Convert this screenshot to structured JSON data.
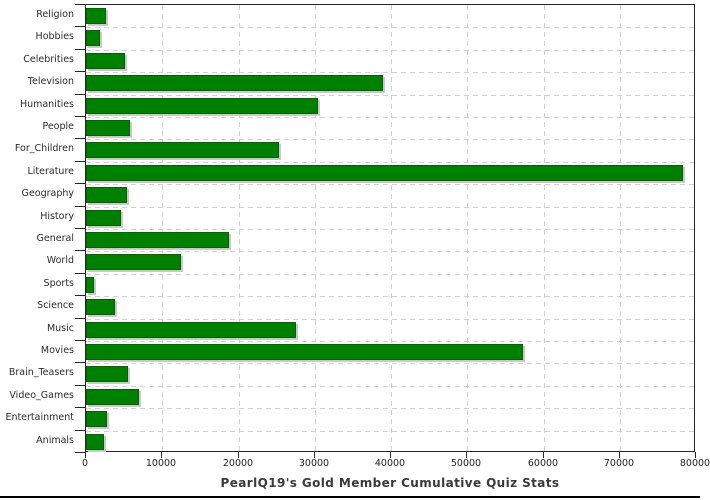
{
  "chart_data": {
    "type": "bar",
    "orientation": "horizontal",
    "title": "PearlQ19's Gold Member Cumulative Quiz Stats",
    "categories": [
      "Religion",
      "Hobbies",
      "Celebrities",
      "Television",
      "Humanities",
      "People",
      "For_Children",
      "Literature",
      "Geography",
      "History",
      "General",
      "World",
      "Sports",
      "Science",
      "Music",
      "Movies",
      "Brain_Teasers",
      "Video_Games",
      "Entertainment",
      "Animals"
    ],
    "values": [
      2650,
      1900,
      5100,
      38900,
      30400,
      5800,
      25300,
      78300,
      5400,
      4600,
      18800,
      12500,
      1000,
      3800,
      27500,
      57300,
      5500,
      6900,
      2700,
      2300
    ],
    "xlabel": "",
    "ylabel": "",
    "xlim": [
      0,
      80000
    ],
    "x_ticks": [
      0,
      10000,
      20000,
      30000,
      40000,
      50000,
      60000,
      70000,
      80000
    ],
    "x_tick_labels": [
      "0",
      "10000",
      "20000",
      "30000",
      "40000",
      "50000",
      "60000",
      "70000",
      "80000"
    ],
    "grid": "dashed",
    "legend_position": "none",
    "colors": {
      "bar_fill": "#008000",
      "bar_border": "#046404",
      "bar_shadow": "#c9c9c9",
      "gridline": "#cfd3d6",
      "frame": "#262626",
      "axis_text": "#222222",
      "label_text": "#2b2b2b",
      "title_text": "#3a3a3a",
      "bottom_rule": "#000000"
    }
  }
}
